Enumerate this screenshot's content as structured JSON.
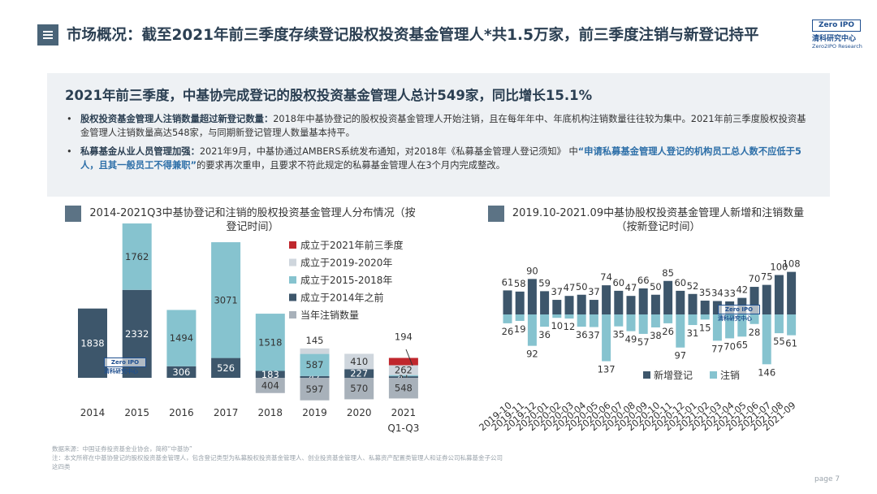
{
  "header": {
    "title": "市场概况：截至2021年前三季度存续登记股权投资基金管理人*共1.5万家，前三季度注销与新登记持平",
    "logo_box": "Zero IPO",
    "logo_cn": "清科研究中心",
    "logo_en": "Zero2IPO Research"
  },
  "summary": {
    "headline": "2021年前三季度，中基协完成登记的股权投资基金管理人总计549家，同比增长15.1%",
    "bullet1_bold": "股权投资基金管理人注销数量超过新登记数量：",
    "bullet1_text": "2018年中基协登记的股权投资基金管理人开始注销，且在每年年中、年底机构注销数量往往较为集中。2021年前三季度股权投资基金管理人注销数量高达548家，与同期新登记管理人数量基本持平。",
    "bullet2_bold": "私募基金从业人员管理加强：",
    "bullet2_text1": "2021年9月，中基协通过AMBERS系统发布通知，对2018年《私募基金管理人登记须知》 中",
    "bullet2_highlight": "“申请私募基金管理人登记的机构员工总人数不应低于5人，且其一般员工不得兼职”",
    "bullet2_text2": "的要求再次重申，且要求不符此规定的私募基金管理人在3个月内完成整改。"
  },
  "left_chart_title": "2014-2021Q3中基协登记和注销的股权投资基金管理人分布情况（按登记时间）",
  "right_chart_title": "2019.10-2021.09中基协股权投资基金管理人新增和注销数量（按新登记时间）",
  "footnote": "数据来源：中国证券投资基金业协会，简称“中基协”\n注：本文所称在中基协登记的股权投资基金管理人，包含登记类型为私募股权投资基金管理人、创业投资基金管理人、私募资产配置类管理人和证券公司私募基金子公司这四类",
  "page": "page  7",
  "watermark_box": "Zero IPO",
  "watermark_cn": "清科研究中心",
  "colors": {
    "dark": "#3d566b",
    "light": "#86c3cf",
    "lightgray": "#cfd6dd",
    "red": "#c0272d",
    "gray": "#a8b1ba"
  },
  "chart_data": [
    {
      "type": "bar",
      "title": "2014-2021Q3中基协登记和注销的股权投资基金管理人分布情况（按登记时间）",
      "categories": [
        "2014",
        "2015",
        "2016",
        "2017",
        "2018",
        "2019",
        "2020",
        "2021\nQ1-Q3"
      ],
      "stacked_series": [
        {
          "name": "成立于2014年之前",
          "values": [
            1838,
            2332,
            306,
            526,
            183,
            47,
            227,
            41
          ]
        },
        {
          "name": "成立于2015-2018年",
          "values": [
            null,
            1762,
            1494,
            3071,
            1518,
            587,
            null,
            31
          ]
        },
        {
          "name": "成立于2019-2020年",
          "values": [
            null,
            null,
            null,
            null,
            null,
            145,
            410,
            262
          ]
        },
        {
          "name": "成立于2021年前三季度",
          "values": [
            null,
            null,
            null,
            null,
            null,
            null,
            null,
            194
          ]
        }
      ],
      "negative_series": {
        "name": "当年注销数量",
        "values": [
          null,
          null,
          null,
          null,
          404,
          597,
          570,
          548
        ]
      },
      "legend_position": "top-right"
    },
    {
      "type": "bar",
      "title": "2019.10-2021.09中基协股权投资基金管理人新增和注销数量（按新登记时间）",
      "categories": [
        "2019-10",
        "2019-11",
        "2019-12",
        "2020-01",
        "2020-02",
        "2020-03",
        "2020-04",
        "2020-05",
        "2020-06",
        "2020-07",
        "2020-08",
        "2020-09",
        "2020-10",
        "2020-11",
        "2020-12",
        "2021-01",
        "2021-02",
        "2021-03",
        "2021-04",
        "2021-05",
        "2021-06",
        "2021-07",
        "2021-08",
        "2021-09"
      ],
      "series": [
        {
          "name": "新增登记",
          "values": [
            61,
            58,
            90,
            59,
            37,
            47,
            50,
            37,
            74,
            60,
            47,
            66,
            50,
            85,
            60,
            52,
            35,
            34,
            33,
            42,
            70,
            75,
            100,
            108
          ]
        },
        {
          "name": "注销",
          "values": [
            26,
            19,
            92,
            36,
            10,
            12,
            36,
            37,
            137,
            35,
            49,
            57,
            38,
            26,
            97,
            31,
            15,
            77,
            70,
            65,
            28,
            146,
            55,
            61
          ]
        }
      ],
      "legend_position": "bottom-right"
    }
  ]
}
